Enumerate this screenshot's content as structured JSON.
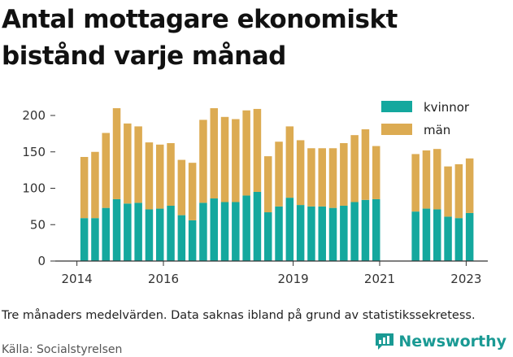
{
  "title": "Antal mottagare ekonomiskt bistånd varje månad",
  "note": "Tre månaders medelvärden. Data saknas ibland på grund av statistikssekretess.",
  "source": "Källa: Socialstyrelsen",
  "brand": "Newsworthy",
  "colors": {
    "kvinnor": "#14a89e",
    "man": "#dcab52",
    "axis": "#333333"
  },
  "chart_data": {
    "type": "bar",
    "stacked": true,
    "xlim": [
      2013.5,
      2023.5
    ],
    "ylim": [
      0,
      220
    ],
    "yticks": [
      0,
      50,
      100,
      150,
      200
    ],
    "xticks": [
      2014,
      2016,
      2019,
      2021,
      2023
    ],
    "legend_position": "top-right",
    "grid": false,
    "x": [
      2014.17,
      2014.42,
      2014.67,
      2014.92,
      2015.17,
      2015.42,
      2015.67,
      2015.92,
      2016.17,
      2016.42,
      2016.67,
      2016.92,
      2017.17,
      2017.42,
      2017.67,
      2017.92,
      2018.17,
      2018.42,
      2018.67,
      2018.92,
      2019.17,
      2019.42,
      2019.67,
      2019.92,
      2020.17,
      2020.42,
      2020.67,
      2020.92,
      2021.83,
      2022.08,
      2022.33,
      2022.58,
      2022.83,
      2023.08
    ],
    "series": [
      {
        "name": "kvinnor",
        "values": [
          59,
          59,
          73,
          85,
          79,
          80,
          71,
          72,
          76,
          63,
          56,
          80,
          86,
          81,
          81,
          90,
          95,
          67,
          75,
          87,
          77,
          75,
          75,
          73,
          76,
          81,
          84,
          85,
          68,
          72,
          71,
          61,
          59,
          66
        ]
      },
      {
        "name": "män",
        "values": [
          84,
          91,
          103,
          125,
          110,
          105,
          92,
          88,
          86,
          76,
          79,
          114,
          124,
          117,
          114,
          117,
          114,
          77,
          89,
          98,
          89,
          80,
          80,
          82,
          86,
          92,
          97,
          73,
          79,
          80,
          83,
          69,
          74,
          75
        ]
      }
    ]
  }
}
